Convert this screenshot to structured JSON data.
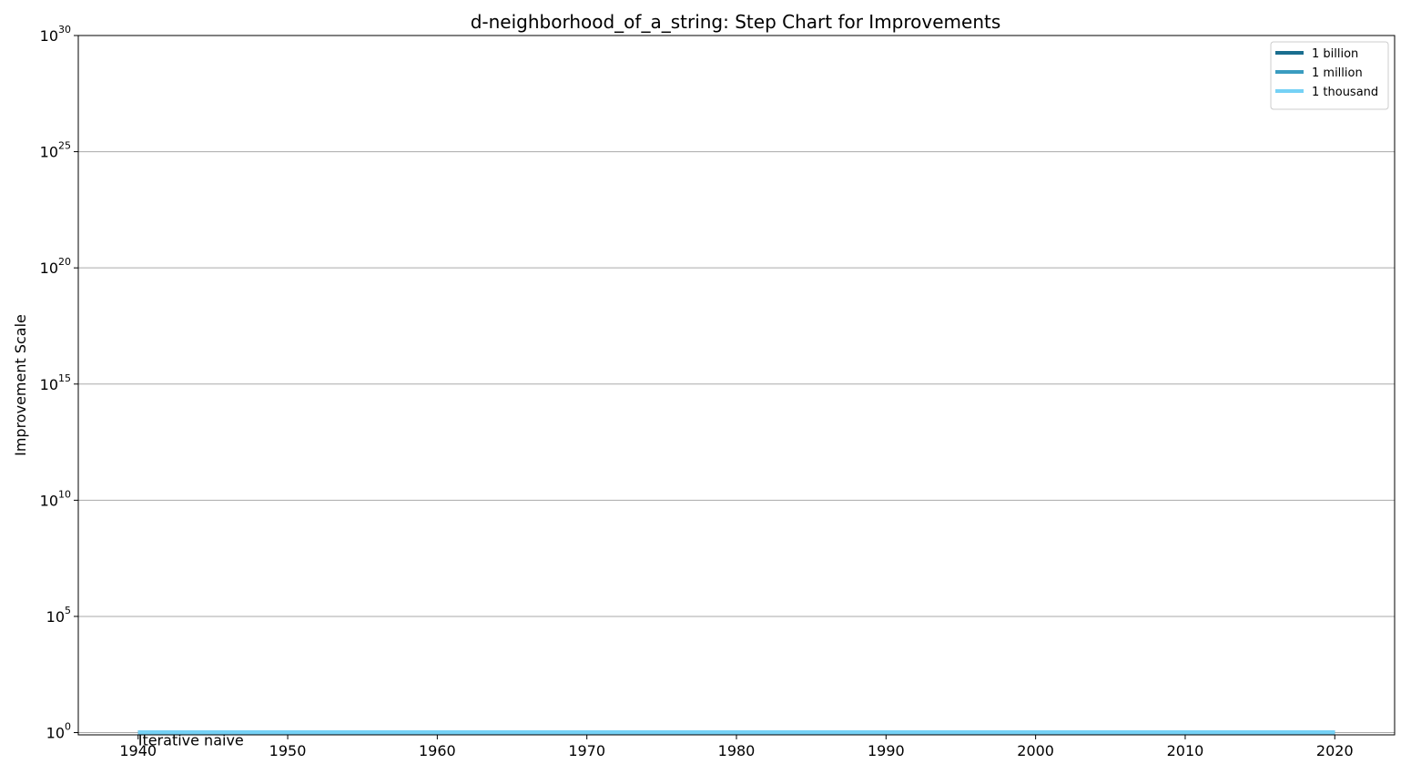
{
  "chart_data": {
    "type": "line",
    "title": "d-neighborhood_of_a_string: Step Chart for Improvements",
    "xlabel": "",
    "ylabel": "Improvement Scale",
    "x_scale": "linear",
    "y_scale": "log",
    "xlim": [
      1936,
      2024
    ],
    "ylim": [
      0.8,
      1e+30
    ],
    "x_ticks": [
      1940,
      1950,
      1960,
      1970,
      1980,
      1990,
      2000,
      2010,
      2020
    ],
    "x_tick_labels": [
      "1940",
      "1950",
      "1960",
      "1970",
      "1980",
      "1990",
      "2000",
      "2010",
      "2020"
    ],
    "y_tick_exponents": [
      0,
      5,
      10,
      15,
      20,
      25,
      30
    ],
    "y_tick_base": "10",
    "y_tick_labels": [
      "10^0",
      "10^5",
      "10^10",
      "10^15",
      "10^20",
      "10^25",
      "10^30"
    ],
    "grid": "horizontal",
    "legend_position": "top-right",
    "series": [
      {
        "name": "1 billion",
        "color": "#1a6e8f",
        "x": [
          1940,
          2020
        ],
        "y": [
          1,
          1
        ]
      },
      {
        "name": "1 million",
        "color": "#3a9cc0",
        "x": [
          1940,
          2020
        ],
        "y": [
          1,
          1
        ]
      },
      {
        "name": "1 thousand",
        "color": "#75d1f5",
        "x": [
          1940,
          2020
        ],
        "y": [
          1,
          1
        ]
      }
    ],
    "annotations": [
      {
        "text": "Iterative naive",
        "x": 1940,
        "y": 1
      }
    ]
  }
}
